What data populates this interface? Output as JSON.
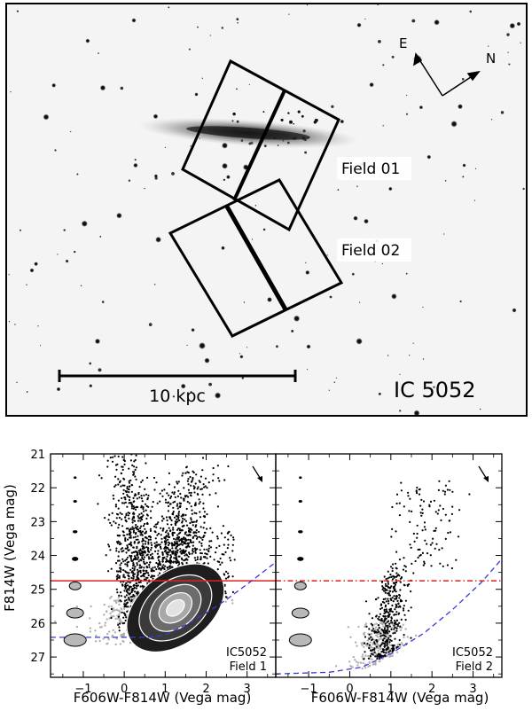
{
  "image_panel": {
    "galaxy_name": "IC 5052",
    "field_labels": [
      "Field 01",
      "Field 02"
    ],
    "scale_bar_label": "10 kpc",
    "compass": {
      "east": "E",
      "north": "N"
    }
  },
  "chart_data": [
    {
      "type": "scatter",
      "title": "",
      "annotation": [
        "IC5052",
        "Field  1"
      ],
      "xlabel": "F606W-F814W (Vega mag)",
      "ylabel": "F814W (Vega mag)",
      "xlim": [
        -1.8,
        3.7
      ],
      "ylim": [
        27.6,
        21.0
      ],
      "x_ticks": [
        -1,
        0,
        1,
        2,
        3
      ],
      "y_ticks": [
        21,
        22,
        23,
        24,
        25,
        26,
        27
      ],
      "trgb_line": {
        "y": 24.75,
        "style": "solid",
        "color": "#e0201b"
      },
      "completeness_curve": [
        [
          -1.8,
          26.42
        ],
        [
          0.6,
          26.42
        ],
        [
          1.0,
          26.35
        ],
        [
          1.5,
          26.05
        ],
        [
          2.0,
          25.7
        ],
        [
          2.5,
          25.3
        ],
        [
          3.0,
          24.85
        ],
        [
          3.7,
          24.2
        ]
      ],
      "error_ellipses": [
        [
          -1.2,
          21.7
        ],
        [
          -1.2,
          22.4
        ],
        [
          -1.2,
          23.3
        ],
        [
          -1.2,
          24.1
        ],
        [
          -1.2,
          24.9
        ],
        [
          -1.2,
          25.7
        ],
        [
          -1.2,
          26.5
        ]
      ],
      "density_contours": true
    },
    {
      "type": "scatter",
      "title": "",
      "annotation": [
        "IC5052",
        "Field  2"
      ],
      "xlabel": "F606W-F814W (Vega mag)",
      "ylabel": "",
      "xlim": [
        -1.8,
        3.7
      ],
      "ylim": [
        27.6,
        21.0
      ],
      "x_ticks": [
        -1,
        0,
        1,
        2,
        3
      ],
      "y_ticks": [
        21,
        22,
        23,
        24,
        25,
        26,
        27
      ],
      "trgb_line": {
        "y": 24.75,
        "style": "dash-dot",
        "color": "#e0201b"
      },
      "completeness_curve": [
        [
          -1.8,
          27.5
        ],
        [
          -0.5,
          27.45
        ],
        [
          0.3,
          27.3
        ],
        [
          1.0,
          26.9
        ],
        [
          1.8,
          26.3
        ],
        [
          2.5,
          25.6
        ],
        [
          3.2,
          24.8
        ],
        [
          3.7,
          24.1
        ]
      ],
      "error_ellipses": [
        [
          -1.2,
          21.7
        ],
        [
          -1.2,
          22.4
        ],
        [
          -1.2,
          23.3
        ],
        [
          -1.2,
          24.1
        ],
        [
          -1.2,
          24.9
        ],
        [
          -1.2,
          25.7
        ],
        [
          -1.2,
          26.5
        ]
      ],
      "density_contours": false
    }
  ]
}
